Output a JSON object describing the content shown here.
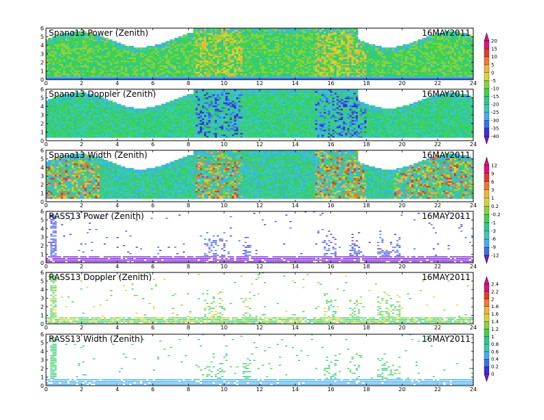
{
  "colors": {
    "palette": [
      "#7b16d6",
      "#3b2fe0",
      "#3a6ff0",
      "#3fb0f0",
      "#39c9b9",
      "#2fc98a",
      "#3fd34a",
      "#8ad33a",
      "#d6d632",
      "#f2b43a",
      "#f07a2a",
      "#e43a2a",
      "#e01080"
    ],
    "background": "#ffffff"
  },
  "chart_data": [
    {
      "type": "heatmap",
      "title": "Spano13 Power (Zenith)",
      "date": "16MAY2011",
      "xlim": [
        0,
        24
      ],
      "ylim": [
        0,
        6
      ],
      "xticks": [
        "0",
        "2",
        "4",
        "6",
        "8",
        "10",
        "12",
        "14",
        "16",
        "18",
        "20",
        "22",
        "24"
      ],
      "yticks": [
        "0",
        "1",
        "2",
        "3",
        "4",
        "5",
        "6"
      ],
      "colorbar": "A"
    },
    {
      "type": "heatmap",
      "title": "Spano13 Doppler (Zenith)",
      "date": "16MAY2011",
      "xlim": [
        0,
        24
      ],
      "ylim": [
        0,
        6
      ],
      "xticks": [
        "0",
        "2",
        "4",
        "6",
        "8",
        "10",
        "12",
        "14",
        "16",
        "18",
        "20",
        "22",
        "24"
      ],
      "yticks": [
        "0",
        "1",
        "2",
        "3",
        "4",
        "5",
        "6"
      ],
      "colorbar": "A"
    },
    {
      "type": "heatmap",
      "title": "Spano13 Width (Zenith)",
      "date": "16MAY2011",
      "xlim": [
        0,
        24
      ],
      "ylim": [
        0,
        6
      ],
      "xticks": [
        "0",
        "2",
        "4",
        "6",
        "8",
        "10",
        "12",
        "14",
        "16",
        "18",
        "20",
        "22",
        "24"
      ],
      "yticks": [
        "0",
        "1",
        "2",
        "3",
        "4",
        "5",
        "6"
      ],
      "colorbar": "B"
    },
    {
      "type": "heatmap",
      "title": "RASS13 Power (Zenith)",
      "date": "16MAY2011",
      "xlim": [
        0,
        24
      ],
      "ylim": [
        0,
        6
      ],
      "xticks": [
        "0",
        "2",
        "4",
        "6",
        "8",
        "10",
        "12",
        "14",
        "16",
        "18",
        "20",
        "22",
        "24"
      ],
      "yticks": [
        "0",
        "1",
        "2",
        "3",
        "4",
        "5",
        "6"
      ],
      "colorbar": "B"
    },
    {
      "type": "heatmap",
      "title": "RASS13 Doppler (Zenith)",
      "date": "16MAY2011",
      "xlim": [
        0,
        24
      ],
      "ylim": [
        0,
        6
      ],
      "xticks": [
        "0",
        "2",
        "4",
        "6",
        "8",
        "10",
        "12",
        "14",
        "16",
        "18",
        "20",
        "22",
        "24"
      ],
      "yticks": [
        "0",
        "1",
        "2",
        "3",
        "4",
        "5",
        "6"
      ],
      "colorbar": "C"
    },
    {
      "type": "heatmap",
      "title": "RASS13 Width (Zenith)",
      "date": "16MAY2011",
      "xlim": [
        0,
        24
      ],
      "ylim": [
        0,
        6
      ],
      "xticks": [
        "0",
        "2",
        "4",
        "6",
        "8",
        "10",
        "12",
        "14",
        "16",
        "18",
        "20",
        "22",
        "24"
      ],
      "yticks": [
        "0",
        "1",
        "2",
        "3",
        "4",
        "5",
        "6"
      ],
      "colorbar": "C"
    }
  ],
  "colorbars": {
    "A": [
      "20",
      "15",
      "10",
      "5",
      "0",
      "-5",
      "-10",
      "-15",
      "-20",
      "-25",
      "-30",
      "-35",
      "-40"
    ],
    "B": [
      "12",
      "9",
      "6",
      "3",
      "1",
      "0.2",
      "-0.2",
      "-1",
      "-3",
      "-6",
      "-9",
      "-12"
    ],
    "C": [
      "2.4",
      "2.2",
      "2",
      "1.8",
      "1.6",
      "1.4",
      "1.2",
      "1",
      "0.8",
      "0.6",
      "0.4",
      "0.2",
      "0"
    ]
  }
}
